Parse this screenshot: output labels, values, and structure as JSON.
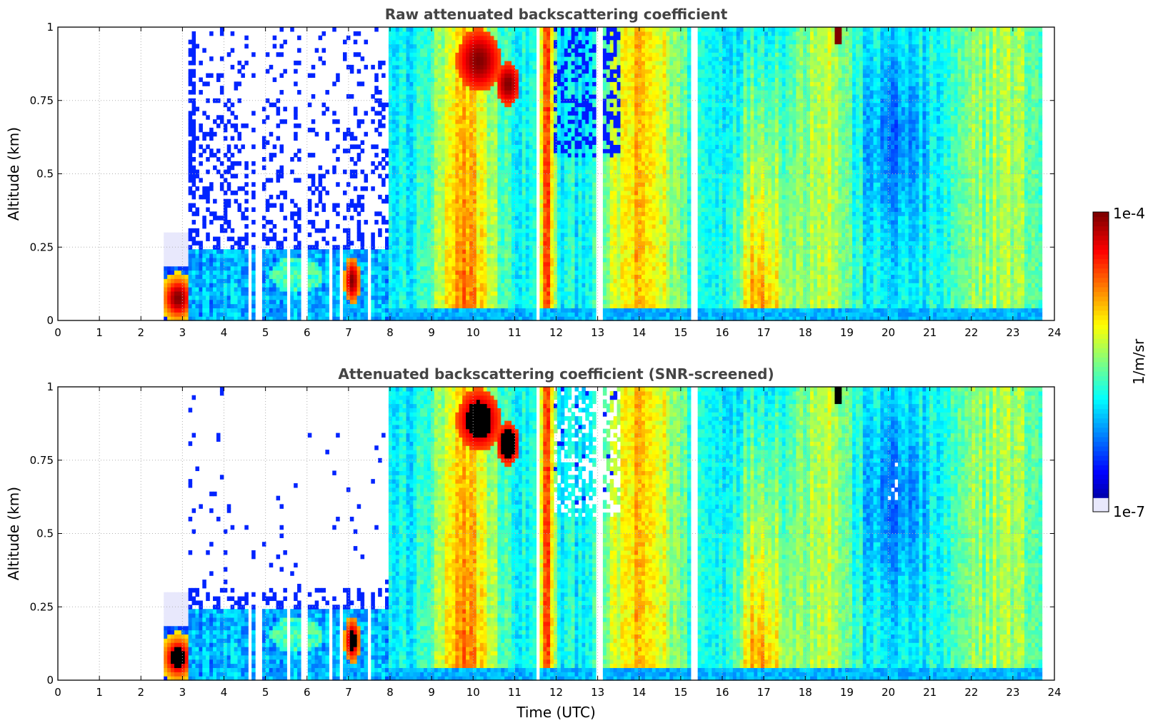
{
  "chart_data": [
    {
      "type": "heatmap",
      "title": "Raw attenuated backscattering coefficient",
      "xlabel": "",
      "ylabel": "Altitude (km)",
      "xlim": [
        0,
        24
      ],
      "ylim": [
        0,
        1
      ],
      "xticks": [
        "0",
        "1",
        "2",
        "3",
        "4",
        "5",
        "6",
        "7",
        "8",
        "9",
        "10",
        "11",
        "12",
        "13",
        "14",
        "15",
        "16",
        "17",
        "18",
        "19",
        "20",
        "21",
        "22",
        "23",
        "24"
      ],
      "yticks": [
        "0",
        "0.25",
        "0.5",
        "0.75",
        "1"
      ],
      "grid": true,
      "screened": false,
      "data_start_hour": 2.55,
      "data_end_hour": 23.7,
      "colormap": "jet",
      "color_scale": "log"
    },
    {
      "type": "heatmap",
      "title": "Attenuated backscattering coefficient (SNR-screened)",
      "xlabel": "Time (UTC)",
      "ylabel": "Altitude (km)",
      "xlim": [
        0,
        24
      ],
      "ylim": [
        0,
        1
      ],
      "xticks": [
        "0",
        "1",
        "2",
        "3",
        "4",
        "5",
        "6",
        "7",
        "8",
        "9",
        "10",
        "11",
        "12",
        "13",
        "14",
        "15",
        "16",
        "17",
        "18",
        "19",
        "20",
        "21",
        "22",
        "23",
        "24"
      ],
      "yticks": [
        "0",
        "0.25",
        "0.5",
        "0.75",
        "1"
      ],
      "grid": true,
      "screened": true,
      "saturated_color": "#000000",
      "data_start_hour": 2.55,
      "data_end_hour": 23.7,
      "colormap": "jet",
      "color_scale": "log"
    }
  ],
  "colorbar": {
    "label": "1/m/sr",
    "max_label": "1e-4",
    "min_label": "1e-7",
    "vmin": 1e-07,
    "vmax": 0.0001,
    "scale": "log",
    "colors": [
      "#e8e8fc",
      "#0000ff",
      "#0080ff",
      "#00ffff",
      "#80ff80",
      "#ffff00",
      "#ff8000",
      "#ff0000",
      "#800000"
    ]
  }
}
